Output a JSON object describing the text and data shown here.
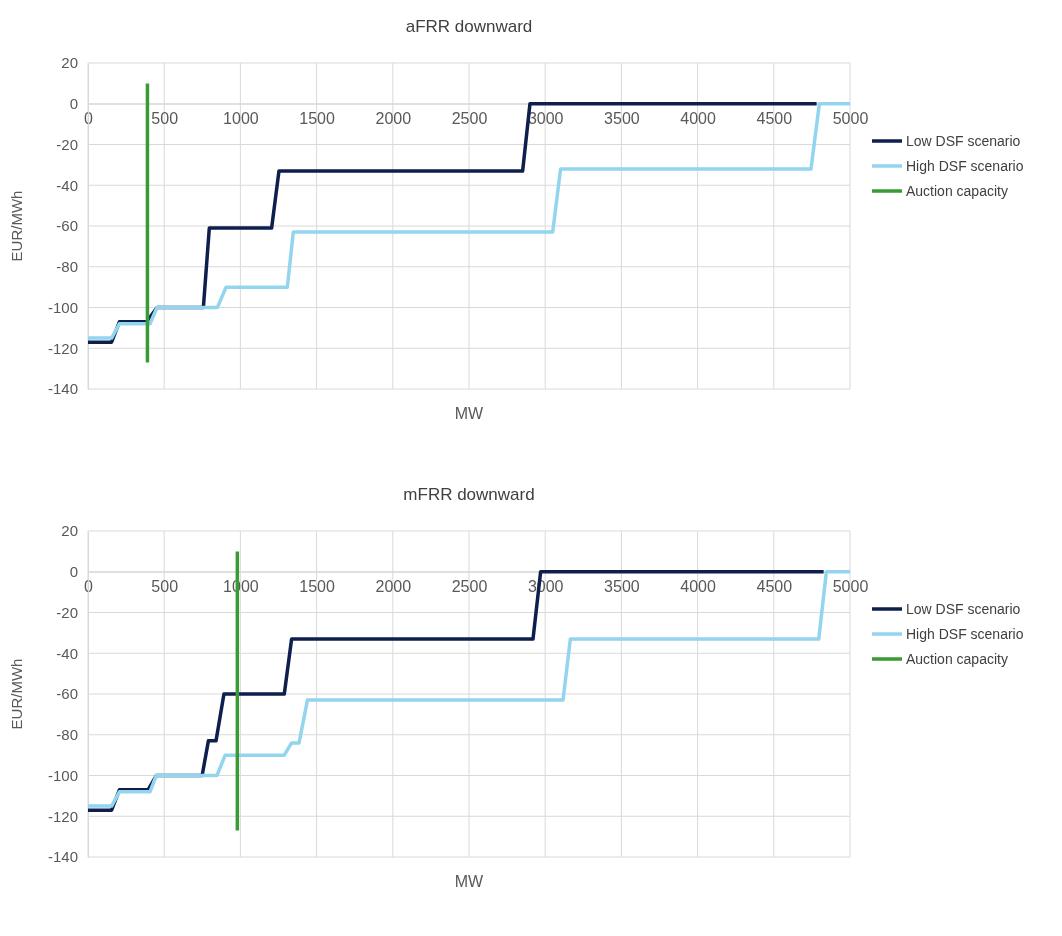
{
  "chart_data": [
    {
      "type": "line",
      "title": "aFRR downward",
      "xlabel": "MW",
      "ylabel": "EUR/MWh",
      "xlim": [
        0,
        5000
      ],
      "xticks": [
        0,
        500,
        1000,
        1500,
        2000,
        2500,
        3000,
        3500,
        4000,
        4500,
        5000
      ],
      "ylim": [
        -140,
        20
      ],
      "yticks": [
        -140,
        -120,
        -100,
        -80,
        -60,
        -40,
        -20,
        0,
        20
      ],
      "grid": true,
      "legend": "right",
      "marker": "none",
      "line_style": "solid",
      "series": [
        {
          "name": "Low DSF scenario",
          "color": "#0e1f4d",
          "x": [
            0,
            155,
            206,
            385,
            453,
            757,
            796,
            1205,
            1253,
            2852,
            2900,
            4781
          ],
          "values": [
            -117,
            -117,
            -107,
            -107,
            -100,
            -100,
            -61,
            -61,
            -33,
            -33,
            0,
            0
          ]
        },
        {
          "name": "High DSF scenario",
          "color": "#93d5ee",
          "x": [
            0,
            155,
            206,
            407,
            453,
            849,
            906,
            1308,
            1347,
            3049,
            3101,
            4744,
            4799,
            5000
          ],
          "values": [
            -115,
            -115,
            -108,
            -108,
            -100,
            -100,
            -90,
            -90,
            -63,
            -63,
            -32,
            -32,
            0,
            0
          ]
        },
        {
          "name": "Auction capacity",
          "color": "#3a9a35",
          "x": [
            390,
            390
          ],
          "values": [
            10,
            -127
          ]
        }
      ]
    },
    {
      "type": "line",
      "title": "mFRR downward",
      "xlabel": "MW",
      "ylabel": "EUR/MWh",
      "xlim": [
        0,
        5000
      ],
      "xticks": [
        0,
        500,
        1000,
        1500,
        2000,
        2500,
        3000,
        3500,
        4000,
        4500,
        5000
      ],
      "ylim": [
        -140,
        20
      ],
      "yticks": [
        -140,
        -120,
        -100,
        -80,
        -60,
        -40,
        -20,
        0,
        20
      ],
      "grid": true,
      "legend": "right",
      "marker": "none",
      "line_style": "solid",
      "series": [
        {
          "name": "Low DSF scenario",
          "color": "#0e1f4d",
          "x": [
            0,
            155,
            206,
            394,
            448,
            749,
            790,
            840,
            892,
            1288,
            1336,
            2920,
            2970,
            4827
          ],
          "values": [
            -117,
            -117,
            -107,
            -107,
            -100,
            -100,
            -83,
            -83,
            -60,
            -60,
            -33,
            -33,
            0,
            0
          ]
        },
        {
          "name": "High DSF scenario",
          "color": "#93d5ee",
          "x": [
            0,
            155,
            206,
            407,
            448,
            846,
            900,
            1288,
            1336,
            1385,
            1440,
            3117,
            3165,
            4795,
            4845,
            5000
          ],
          "values": [
            -115,
            -115,
            -108,
            -108,
            -100,
            -100,
            -90,
            -90,
            -84,
            -84,
            -63,
            -63,
            -33,
            -33,
            0,
            0
          ]
        },
        {
          "name": "Auction capacity",
          "color": "#3a9a35",
          "x": [
            980,
            980
          ],
          "values": [
            10,
            -127
          ]
        }
      ]
    }
  ]
}
